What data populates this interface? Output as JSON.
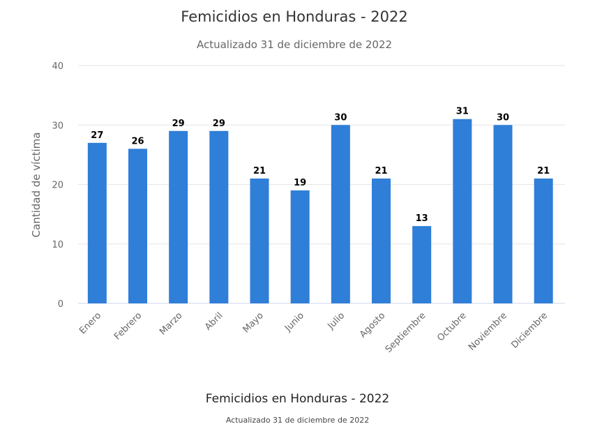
{
  "chart_data": {
    "type": "bar",
    "title": "Femicidios en Honduras - 2022",
    "subtitle": "Actualizado 31 de diciembre de 2022",
    "xlabel": "",
    "ylabel": "Cantidad de víctima",
    "ylim": [
      0,
      40
    ],
    "yticks": [
      0,
      10,
      20,
      30,
      40
    ],
    "grid": true,
    "categories": [
      "Enero",
      "Febrero",
      "Marzo",
      "Abril",
      "Mayo",
      "Junio",
      "Julio",
      "Agosto",
      "Septiembre",
      "Octubre",
      "Noviembre",
      "Diciembre"
    ],
    "values": [
      27,
      26,
      29,
      29,
      21,
      19,
      30,
      21,
      13,
      31,
      30,
      21
    ],
    "bar_color": "#2f7ed8"
  },
  "caption": {
    "title": "Femicidios en Honduras - 2022",
    "subtitle": "Actualizado 31 de diciembre de 2022"
  }
}
